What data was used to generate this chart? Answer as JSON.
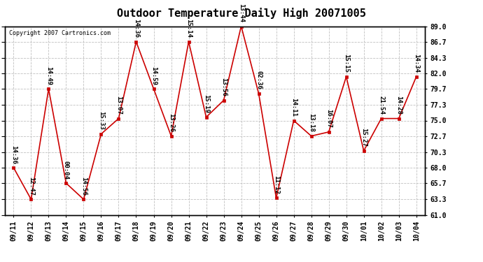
{
  "title": "Outdoor Temperature Daily High 20071005",
  "copyright": "Copyright 2007 Cartronics.com",
  "x_labels": [
    "09/11",
    "09/12",
    "09/13",
    "09/14",
    "09/15",
    "09/16",
    "09/17",
    "09/18",
    "09/19",
    "09/20",
    "09/21",
    "09/22",
    "09/23",
    "09/24",
    "09/25",
    "09/26",
    "09/27",
    "09/28",
    "09/29",
    "09/30",
    "10/01",
    "10/02",
    "10/03",
    "10/04"
  ],
  "y_values": [
    68.0,
    63.3,
    79.7,
    65.7,
    63.3,
    73.0,
    75.3,
    86.7,
    79.7,
    72.7,
    86.7,
    75.5,
    78.0,
    89.0,
    79.0,
    63.5,
    75.0,
    72.7,
    73.3,
    81.5,
    70.5,
    75.3,
    75.3,
    81.5
  ],
  "time_labels": [
    "14:36",
    "12:47",
    "14:49",
    "00:04",
    "14:56",
    "15:33",
    "13:07",
    "14:36",
    "14:59",
    "13:26",
    "15:14",
    "15:19",
    "13:56",
    "13:44",
    "02:36",
    "11:12",
    "14:11",
    "13:18",
    "16:07",
    "15:15",
    "15:27",
    "21:54",
    "14:28",
    "14:34"
  ],
  "ylim": [
    61.0,
    89.0
  ],
  "yticks": [
    61.0,
    63.3,
    65.7,
    68.0,
    70.3,
    72.7,
    75.0,
    77.3,
    79.7,
    82.0,
    84.3,
    86.7,
    89.0
  ],
  "line_color": "#cc0000",
  "marker_color": "#cc0000",
  "bg_color": "#ffffff",
  "grid_color": "#c0c0c0",
  "title_fontsize": 11,
  "tick_fontsize": 7,
  "annotation_fontsize": 6.5
}
